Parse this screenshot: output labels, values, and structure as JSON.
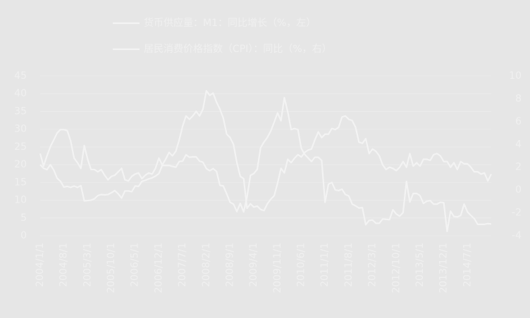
{
  "chart_data": {
    "type": "line",
    "legend": "top",
    "grid": true,
    "categories": [
      "2004/1/1",
      null,
      null,
      null,
      null,
      null,
      null,
      "2004/8/1",
      null,
      null,
      null,
      null,
      null,
      null,
      "2005/3/1",
      null,
      null,
      null,
      null,
      null,
      null,
      "2005/10/1",
      null,
      null,
      null,
      null,
      null,
      null,
      "2006/5/1",
      null,
      null,
      null,
      null,
      null,
      null,
      "2006/12/1",
      null,
      null,
      null,
      null,
      null,
      null,
      "2007/7/1",
      null,
      null,
      null,
      null,
      null,
      null,
      "2008/2/1",
      null,
      null,
      null,
      null,
      null,
      null,
      "2008/9/1",
      null,
      null,
      null,
      null,
      null,
      null,
      "2009/4/1",
      null,
      null,
      null,
      null,
      null,
      null,
      "2009/11/1",
      null,
      null,
      null,
      null,
      null,
      null,
      "2010/6/1",
      null,
      null,
      null,
      null,
      null,
      null,
      "2011/1/1",
      null,
      null,
      null,
      null,
      null,
      null,
      "2011/8/1",
      null,
      null,
      null,
      null,
      null,
      null,
      "2012/3/1",
      null,
      null,
      null,
      null,
      null,
      null,
      "2012/10/1",
      null,
      null,
      null,
      null,
      null,
      null,
      "2013/5/1",
      null,
      null,
      null,
      null,
      null,
      null,
      "2013/12/1",
      null,
      null,
      null,
      null,
      null,
      null,
      "2014/7/1",
      null,
      null,
      null,
      null,
      null,
      null,
      null
    ],
    "ylim": [
      0,
      45
    ],
    "yticks": [
      0,
      5,
      10,
      15,
      20,
      25,
      30,
      35,
      40,
      45
    ],
    "y2lim": [
      -4,
      10
    ],
    "y2ticks": [
      -4,
      -2,
      0,
      2,
      4,
      6,
      8,
      10
    ],
    "series": [
      {
        "name": "货币供应量：M1：同比增长（%，左）",
        "color": "#f3f3f3",
        "axis": "y",
        "values": [
          20.0,
          19.0,
          18.6,
          20.0,
          18.5,
          16.2,
          15.3,
          13.7,
          13.9,
          13.6,
          14.0,
          13.6,
          14.1,
          9.8,
          9.9,
          10.0,
          10.4,
          11.3,
          11.6,
          11.5,
          11.6,
          12.1,
          12.7,
          11.8,
          10.6,
          12.6,
          12.6,
          12.4,
          14.0,
          13.9,
          15.3,
          15.6,
          16.0,
          16.3,
          16.8,
          17.5,
          19.8,
          19.8,
          19.8,
          19.5,
          19.3,
          20.9,
          21.0,
          22.8,
          22.1,
          22.2,
          22.2,
          21.0,
          20.7,
          18.9,
          18.3,
          18.9,
          18.1,
          14.2,
          14.0,
          11.8,
          9.4,
          8.9,
          6.8,
          9.1,
          6.7,
          10.9,
          17.0,
          17.5,
          18.7,
          24.8,
          26.4,
          27.7,
          29.5,
          32.0,
          34.6,
          32.4,
          38.9,
          34.9,
          29.9,
          30.2,
          29.9,
          24.6,
          22.9,
          21.9,
          20.9,
          22.1,
          22.1,
          21.2,
          9.4,
          14.5,
          15.0,
          12.9,
          12.7,
          13.1,
          11.6,
          11.2,
          8.9,
          8.4,
          7.8,
          7.9,
          3.1,
          4.3,
          4.4,
          3.5,
          3.5,
          4.7,
          4.6,
          4.5,
          7.3,
          6.1,
          5.5,
          6.5,
          15.3,
          9.5,
          11.9,
          11.9,
          11.3,
          9.1,
          9.7,
          9.9,
          8.9,
          8.9,
          9.4,
          9.3,
          1.2,
          6.9,
          5.4,
          5.3,
          5.7,
          8.9,
          6.7,
          5.7,
          4.8,
          3.2,
          3.2,
          3.2,
          3.4,
          3.3
        ]
      },
      {
        "name": "居民消费价格指数（CPI）：同比（%，右）",
        "color": "#f3f3f3",
        "axis": "y2",
        "values": [
          3.2,
          2.1,
          3.0,
          3.8,
          4.4,
          5.0,
          5.3,
          5.3,
          5.2,
          4.3,
          2.8,
          2.4,
          1.9,
          3.9,
          2.7,
          1.8,
          1.8,
          1.6,
          1.8,
          1.3,
          0.9,
          1.2,
          1.3,
          1.6,
          1.9,
          0.9,
          0.8,
          1.2,
          1.4,
          1.5,
          1.0,
          1.3,
          1.5,
          1.4,
          1.9,
          2.8,
          2.2,
          2.7,
          3.3,
          3.0,
          3.4,
          4.4,
          5.6,
          6.5,
          6.2,
          6.5,
          6.9,
          6.5,
          7.1,
          8.7,
          8.3,
          8.5,
          7.7,
          7.1,
          6.3,
          4.9,
          4.6,
          4.0,
          2.4,
          1.2,
          1.0,
          -1.6,
          -1.2,
          -1.5,
          -1.4,
          -1.7,
          -1.8,
          -1.2,
          -0.8,
          -0.5,
          0.6,
          1.9,
          1.5,
          2.7,
          2.4,
          2.8,
          3.1,
          2.9,
          3.3,
          3.5,
          3.6,
          4.4,
          5.1,
          4.6,
          4.9,
          4.9,
          5.4,
          5.3,
          5.5,
          6.4,
          6.5,
          6.2,
          6.1,
          5.5,
          4.2,
          4.1,
          4.5,
          3.2,
          3.6,
          3.4,
          3.0,
          2.2,
          1.8,
          2.0,
          1.9,
          1.7,
          2.0,
          2.5,
          2.0,
          3.2,
          2.1,
          2.4,
          2.1,
          2.7,
          2.7,
          2.6,
          3.1,
          3.2,
          3.0,
          2.5,
          2.5,
          2.0,
          2.4,
          1.8,
          2.5,
          2.3,
          2.3,
          2.0,
          1.6,
          1.6,
          1.4,
          1.5,
          0.8,
          1.4
        ]
      }
    ]
  }
}
